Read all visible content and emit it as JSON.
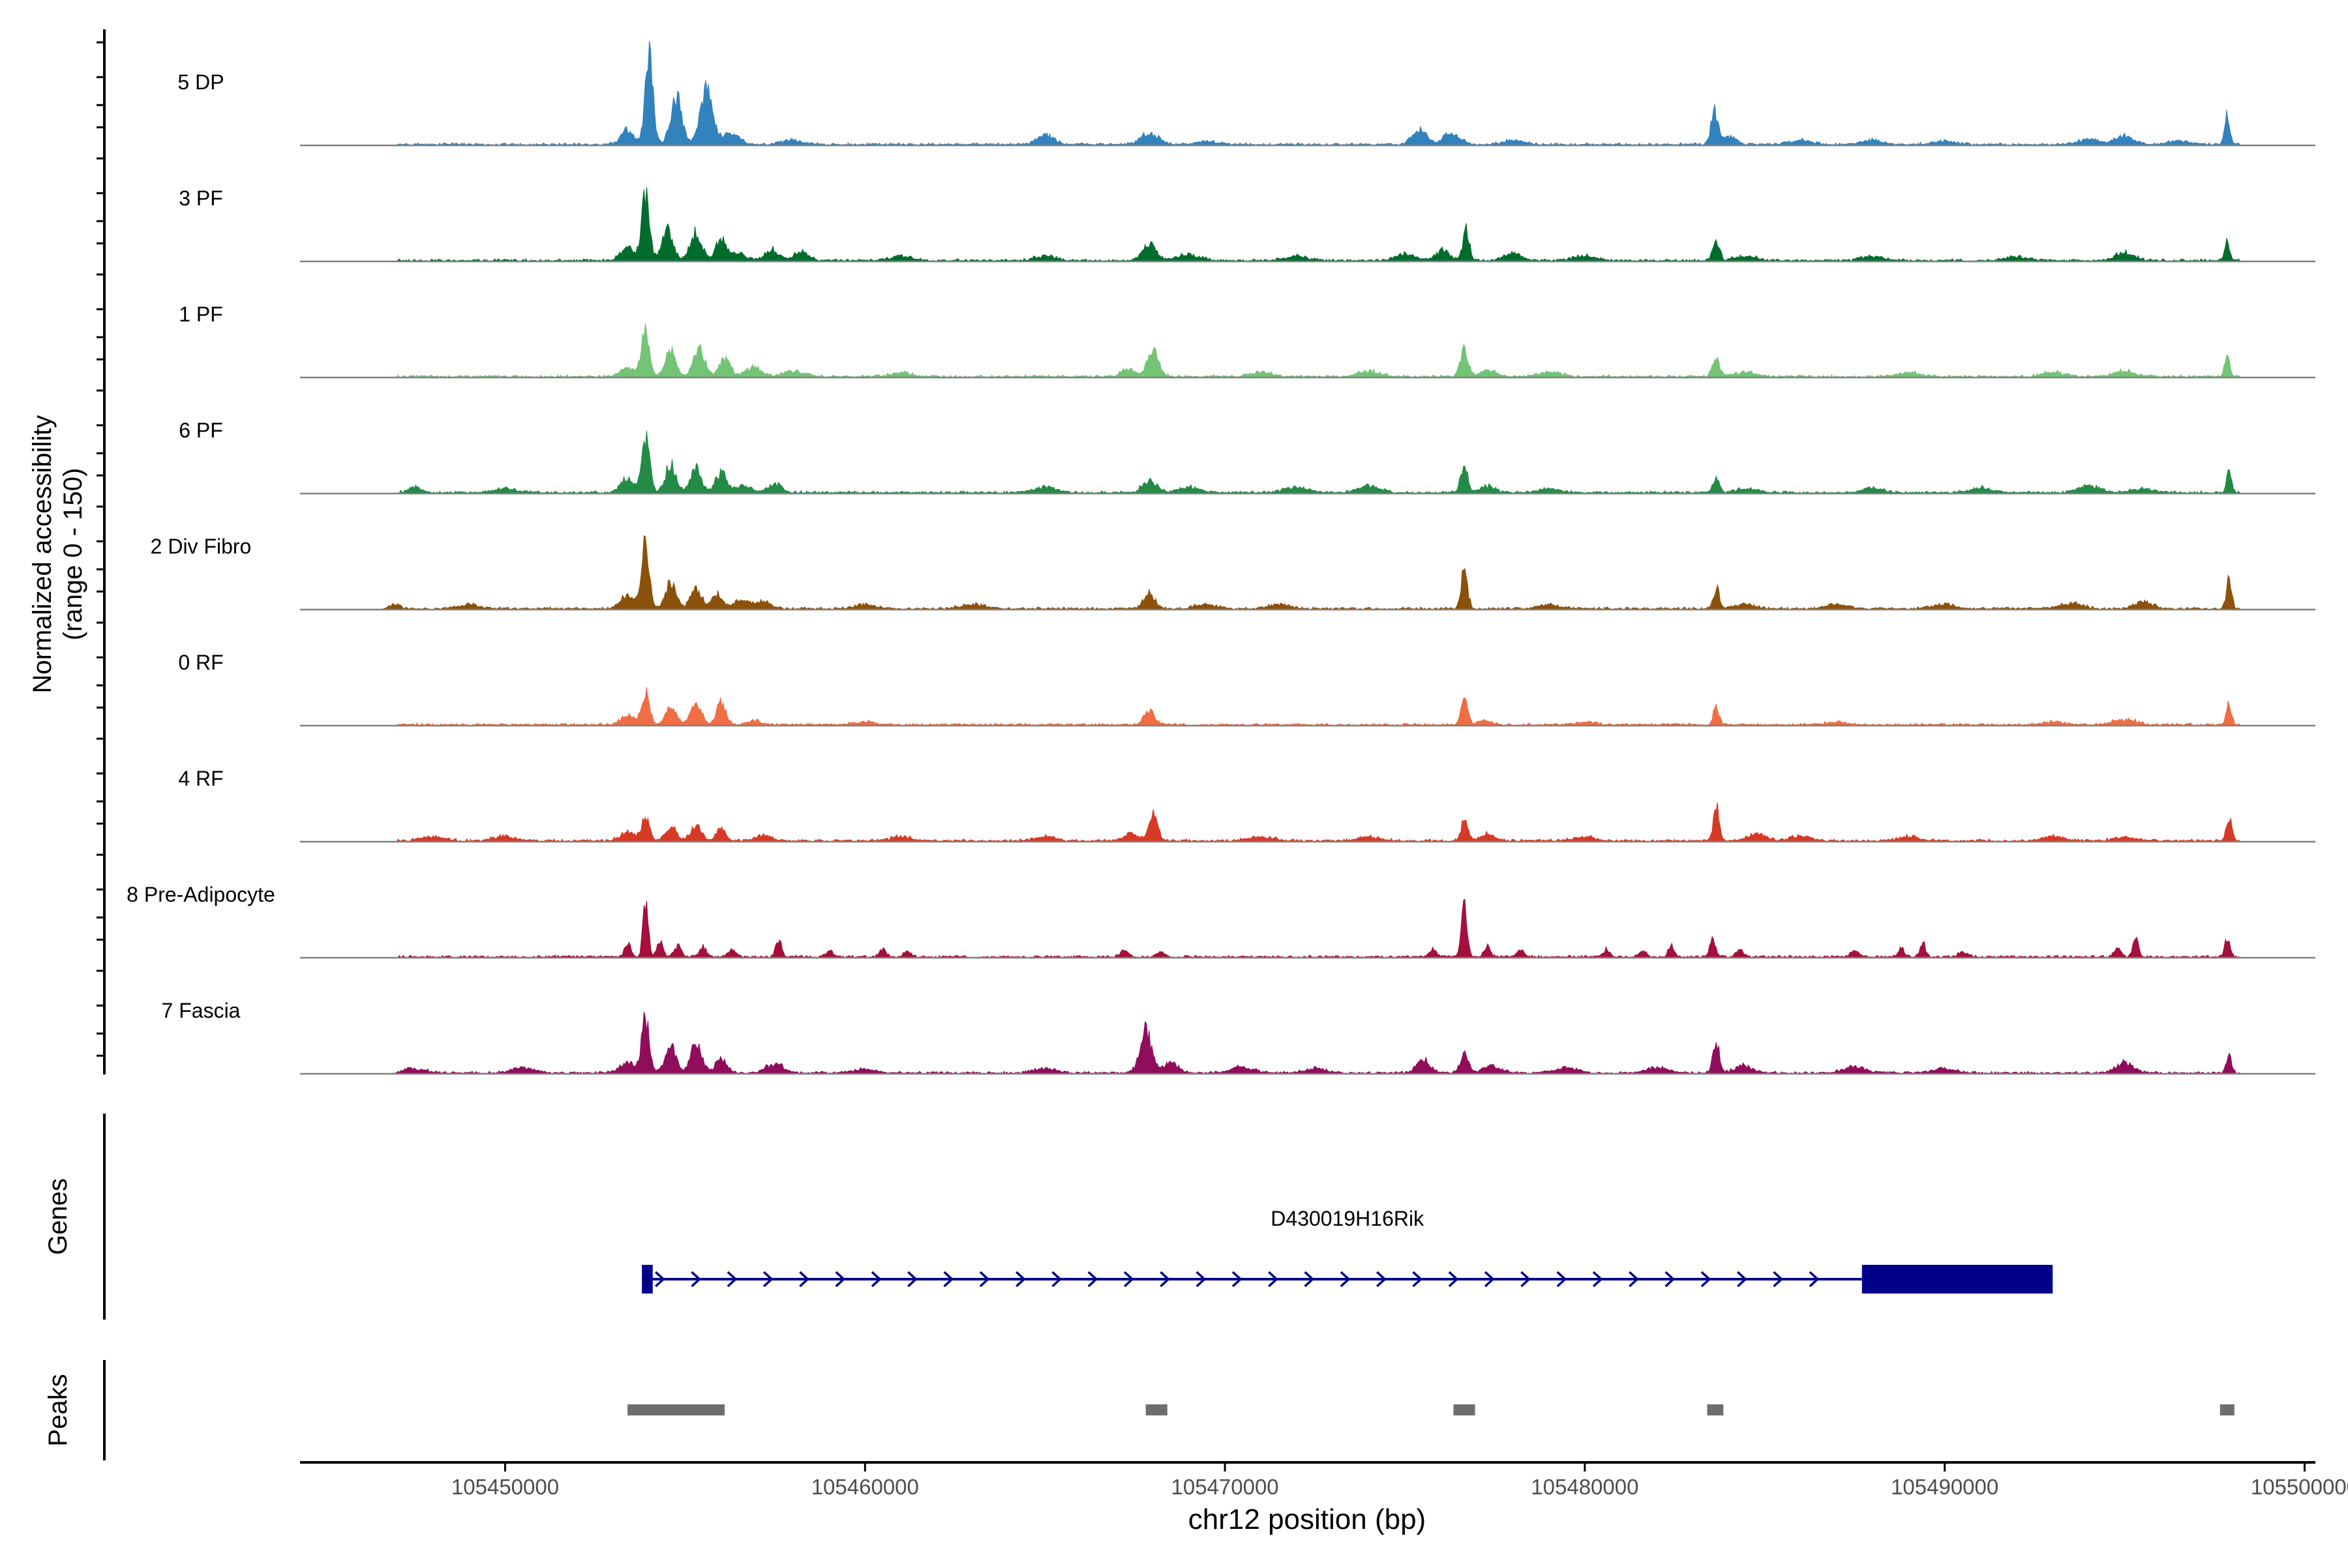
{
  "chart_data": {
    "type": "area",
    "title": "",
    "ylabel_line1": "Normalized accessibility",
    "ylabel_line2": "(range 0 - 150)",
    "xlabel": "chr12 position (bp)",
    "xlim": [
      105444300,
      105500300
    ],
    "ylim": [
      0,
      150
    ],
    "x_ticks": [
      105450000,
      105460000,
      105470000,
      105480000,
      105490000,
      105500000
    ],
    "x_tick_labels": [
      "105450000",
      "105460000",
      "105470000",
      "105480000",
      "105490000",
      "105500000"
    ],
    "baseline_noise": 2,
    "series": [
      {
        "name": "5 DP",
        "color": "#3182BD",
        "peaks": [
          [
            105453400,
            20,
            180
          ],
          [
            105454000,
            128,
            110
          ],
          [
            105454750,
            68,
            150
          ],
          [
            105455600,
            82,
            180
          ],
          [
            105456300,
            18,
            200
          ],
          [
            105458000,
            6,
            300
          ],
          [
            105465000,
            14,
            220
          ],
          [
            105467900,
            16,
            240
          ],
          [
            105469500,
            5,
            300
          ],
          [
            105475400,
            22,
            200
          ],
          [
            105476300,
            18,
            220
          ],
          [
            105478000,
            6,
            300
          ],
          [
            105483600,
            50,
            90
          ],
          [
            105484000,
            10,
            200
          ],
          [
            105486000,
            6,
            300
          ],
          [
            105488000,
            6,
            300
          ],
          [
            105490000,
            5,
            300
          ],
          [
            105494000,
            8,
            300
          ],
          [
            105495000,
            12,
            250
          ],
          [
            105496500,
            5,
            300
          ],
          [
            105497850,
            40,
            70
          ]
        ]
      },
      {
        "name": "3 PF",
        "color": "#006D2C",
        "peaks": [
          [
            105453400,
            18,
            200
          ],
          [
            105453900,
            90,
            110
          ],
          [
            105454500,
            42,
            150
          ],
          [
            105455300,
            38,
            160
          ],
          [
            105456000,
            30,
            150
          ],
          [
            105456500,
            10,
            200
          ],
          [
            105457400,
            16,
            180
          ],
          [
            105458200,
            12,
            200
          ],
          [
            105461000,
            6,
            300
          ],
          [
            105465000,
            6,
            300
          ],
          [
            105467900,
            22,
            200
          ],
          [
            105469000,
            8,
            300
          ],
          [
            105472000,
            6,
            300
          ],
          [
            105475000,
            10,
            250
          ],
          [
            105476050,
            14,
            200
          ],
          [
            105476700,
            42,
            90
          ],
          [
            105478000,
            10,
            250
          ],
          [
            105480000,
            6,
            300
          ],
          [
            105483650,
            28,
            90
          ],
          [
            105484500,
            6,
            300
          ],
          [
            105488000,
            6,
            300
          ],
          [
            105492000,
            6,
            300
          ],
          [
            105495000,
            12,
            250
          ],
          [
            105497850,
            28,
            70
          ]
        ]
      },
      {
        "name": "1 PF",
        "color": "#74C476",
        "peaks": [
          [
            105453400,
            14,
            200
          ],
          [
            105453900,
            68,
            110
          ],
          [
            105454600,
            38,
            150
          ],
          [
            105455400,
            40,
            160
          ],
          [
            105456100,
            28,
            150
          ],
          [
            105456900,
            14,
            200
          ],
          [
            105458000,
            8,
            300
          ],
          [
            105461000,
            6,
            300
          ],
          [
            105468000,
            36,
            160
          ],
          [
            105467300,
            10,
            200
          ],
          [
            105471000,
            6,
            300
          ],
          [
            105474000,
            8,
            300
          ],
          [
            105476650,
            40,
            110
          ],
          [
            105477300,
            10,
            200
          ],
          [
            105479000,
            6,
            300
          ],
          [
            105483650,
            28,
            100
          ],
          [
            105484500,
            6,
            300
          ],
          [
            105489000,
            6,
            300
          ],
          [
            105493000,
            6,
            300
          ],
          [
            105495000,
            8,
            300
          ],
          [
            105497850,
            30,
            70
          ]
        ]
      },
      {
        "name": "6 PF",
        "color": "#238B45",
        "peaks": [
          [
            105447500,
            8,
            200
          ],
          [
            105450000,
            6,
            300
          ],
          [
            105453400,
            20,
            200
          ],
          [
            105453900,
            78,
            110
          ],
          [
            105454600,
            40,
            150
          ],
          [
            105455300,
            34,
            160
          ],
          [
            105456000,
            30,
            150
          ],
          [
            105456600,
            10,
            200
          ],
          [
            105457500,
            12,
            200
          ],
          [
            105465000,
            8,
            300
          ],
          [
            105467900,
            16,
            200
          ],
          [
            105469000,
            8,
            300
          ],
          [
            105472000,
            8,
            300
          ],
          [
            105474000,
            10,
            300
          ],
          [
            105476650,
            36,
            100
          ],
          [
            105477300,
            10,
            200
          ],
          [
            105479000,
            6,
            300
          ],
          [
            105483650,
            22,
            90
          ],
          [
            105484500,
            6,
            300
          ],
          [
            105488000,
            6,
            300
          ],
          [
            105491000,
            8,
            300
          ],
          [
            105494000,
            10,
            300
          ],
          [
            105495500,
            6,
            300
          ],
          [
            105497900,
            32,
            70
          ]
        ]
      },
      {
        "name": "2 Div Fibro",
        "color": "#8C510A",
        "peaks": [
          [
            105446900,
            8,
            150
          ],
          [
            105449000,
            6,
            300
          ],
          [
            105453400,
            18,
            200
          ],
          [
            105453900,
            98,
            110
          ],
          [
            105454600,
            36,
            150
          ],
          [
            105455300,
            26,
            160
          ],
          [
            105455900,
            20,
            150
          ],
          [
            105456600,
            14,
            200
          ],
          [
            105457200,
            10,
            200
          ],
          [
            105460000,
            6,
            300
          ],
          [
            105463000,
            6,
            300
          ],
          [
            105467900,
            22,
            150
          ],
          [
            105469500,
            6,
            300
          ],
          [
            105471500,
            6,
            300
          ],
          [
            105476650,
            56,
            90
          ],
          [
            105479000,
            6,
            300
          ],
          [
            105483650,
            30,
            80
          ],
          [
            105484400,
            6,
            300
          ],
          [
            105487000,
            6,
            300
          ],
          [
            105490000,
            6,
            300
          ],
          [
            105493500,
            8,
            300
          ],
          [
            105495500,
            10,
            250
          ],
          [
            105497900,
            44,
            70
          ]
        ]
      },
      {
        "name": "0 RF",
        "color": "#F16D43",
        "peaks": [
          [
            105453400,
            12,
            200
          ],
          [
            105453900,
            48,
            110
          ],
          [
            105454600,
            26,
            150
          ],
          [
            105455300,
            28,
            160
          ],
          [
            105456000,
            32,
            130
          ],
          [
            105456900,
            6,
            200
          ],
          [
            105460000,
            4,
            300
          ],
          [
            105467900,
            20,
            150
          ],
          [
            105476650,
            38,
            90
          ],
          [
            105477200,
            6,
            200
          ],
          [
            105480000,
            4,
            300
          ],
          [
            105483650,
            24,
            80
          ],
          [
            105487000,
            4,
            300
          ],
          [
            105493000,
            4,
            300
          ],
          [
            105495000,
            8,
            300
          ],
          [
            105497900,
            30,
            70
          ]
        ]
      },
      {
        "name": "4 RF",
        "color": "#D63A26",
        "peaks": [
          [
            105448000,
            6,
            300
          ],
          [
            105450000,
            6,
            300
          ],
          [
            105453400,
            12,
            200
          ],
          [
            105453900,
            32,
            110
          ],
          [
            105454600,
            20,
            150
          ],
          [
            105455300,
            22,
            160
          ],
          [
            105456000,
            18,
            130
          ],
          [
            105457200,
            8,
            200
          ],
          [
            105461000,
            6,
            300
          ],
          [
            105465000,
            6,
            300
          ],
          [
            105467400,
            10,
            200
          ],
          [
            105468000,
            40,
            120
          ],
          [
            105471000,
            6,
            300
          ],
          [
            105474000,
            6,
            300
          ],
          [
            105476650,
            30,
            90
          ],
          [
            105477300,
            10,
            200
          ],
          [
            105480000,
            6,
            300
          ],
          [
            105483650,
            48,
            80
          ],
          [
            105484800,
            10,
            250
          ],
          [
            105486000,
            6,
            300
          ],
          [
            105489000,
            6,
            300
          ],
          [
            105493000,
            6,
            300
          ],
          [
            105495000,
            6,
            300
          ],
          [
            105497900,
            36,
            70
          ]
        ]
      },
      {
        "name": "8 Pre-Adipocyte",
        "color": "#A50F3B",
        "peaks": [
          [
            105453400,
            20,
            80
          ],
          [
            105453900,
            84,
            70
          ],
          [
            105454300,
            26,
            80
          ],
          [
            105454800,
            16,
            100
          ],
          [
            105455500,
            14,
            100
          ],
          [
            105456300,
            10,
            100
          ],
          [
            105457600,
            22,
            80
          ],
          [
            105459000,
            8,
            100
          ],
          [
            105460500,
            10,
            100
          ],
          [
            105461200,
            8,
            100
          ],
          [
            105467200,
            10,
            100
          ],
          [
            105468200,
            8,
            100
          ],
          [
            105475800,
            10,
            100
          ],
          [
            105476650,
            90,
            70
          ],
          [
            105477300,
            16,
            80
          ],
          [
            105478200,
            10,
            100
          ],
          [
            105480600,
            10,
            100
          ],
          [
            105481600,
            10,
            100
          ],
          [
            105482400,
            16,
            80
          ],
          [
            105483550,
            24,
            80
          ],
          [
            105484300,
            10,
            100
          ],
          [
            105487500,
            10,
            100
          ],
          [
            105488800,
            14,
            80
          ],
          [
            105489400,
            18,
            80
          ],
          [
            105490500,
            8,
            100
          ],
          [
            105494800,
            12,
            100
          ],
          [
            105495300,
            26,
            80
          ],
          [
            105497850,
            28,
            70
          ]
        ]
      },
      {
        "name": "7 Fascia",
        "color": "#8F0D5B",
        "peaks": [
          [
            105447500,
            6,
            300
          ],
          [
            105450500,
            8,
            300
          ],
          [
            105453400,
            14,
            200
          ],
          [
            105453900,
            78,
            110
          ],
          [
            105454600,
            38,
            150
          ],
          [
            105455300,
            40,
            160
          ],
          [
            105456000,
            20,
            150
          ],
          [
            105457500,
            12,
            250
          ],
          [
            105460000,
            6,
            300
          ],
          [
            105465000,
            6,
            300
          ],
          [
            105467800,
            62,
            160
          ],
          [
            105468500,
            14,
            200
          ],
          [
            105470500,
            8,
            300
          ],
          [
            105472500,
            6,
            300
          ],
          [
            105475500,
            20,
            180
          ],
          [
            105476650,
            34,
            100
          ],
          [
            105477400,
            10,
            250
          ],
          [
            105479500,
            8,
            300
          ],
          [
            105482000,
            8,
            300
          ],
          [
            105483650,
            44,
            90
          ],
          [
            105484400,
            10,
            250
          ],
          [
            105487500,
            8,
            300
          ],
          [
            105490000,
            6,
            300
          ],
          [
            105495000,
            14,
            250
          ],
          [
            105497900,
            28,
            70
          ]
        ]
      }
    ],
    "genes": [
      {
        "name": "D430019H16Rik",
        "strand": "+",
        "start": 105453800,
        "end": 105493000,
        "exons": [
          [
            105453800,
            105454100
          ],
          [
            105487700,
            105493000
          ]
        ],
        "color": "#00008B"
      }
    ],
    "genes_label": "Genes",
    "peaks_label": "Peaks",
    "peak_regions": [
      [
        105453400,
        105456100
      ],
      [
        105467800,
        105468400
      ],
      [
        105476350,
        105476950
      ],
      [
        105483400,
        105483850
      ],
      [
        105497650,
        105498050
      ]
    ],
    "peak_color": "#6E6E6E",
    "axis_color": "#808080"
  }
}
